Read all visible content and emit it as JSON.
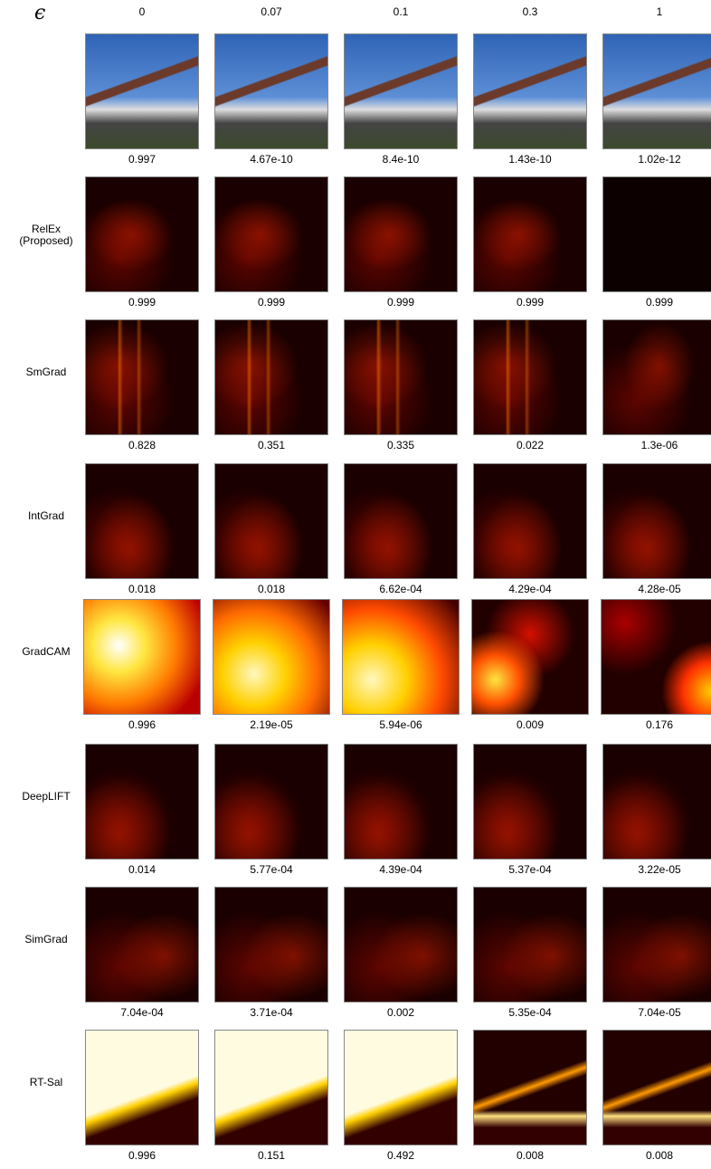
{
  "header": {
    "symbol": "ϵ",
    "columns": [
      "0",
      "0.07",
      "0.1",
      "0.3",
      "1"
    ]
  },
  "rows": [
    {
      "scores": [
        "0.997",
        "4.67e-10",
        "8.4e-10",
        "1.43e-10",
        "1.02e-12"
      ]
    },
    {
      "label": "RelEx\n(Proposed)",
      "scores": [
        "0.999",
        "0.999",
        "0.999",
        "0.999",
        "0.999"
      ]
    },
    {
      "label": "SmGrad",
      "scores": [
        "0.828",
        "0.351",
        "0.335",
        "0.022",
        "1.3e-06"
      ]
    },
    {
      "label": "IntGrad",
      "scores": [
        "0.018",
        "0.018",
        "6.62e-04",
        "4.29e-04",
        "4.28e-05"
      ]
    },
    {
      "label": "GradCAM",
      "scores": [
        "0.996",
        "2.19e-05",
        "5.94e-06",
        "0.009",
        "0.176"
      ]
    },
    {
      "label": "DeepLIFT",
      "scores": [
        "0.014",
        "5.77e-04",
        "4.39e-04",
        "5.37e-04",
        "3.22e-05"
      ]
    },
    {
      "label": "SimGrad",
      "scores": [
        "7.04e-04",
        "3.71e-04",
        "0.002",
        "5.35e-04",
        "7.04e-05"
      ]
    },
    {
      "label": "RT-Sal",
      "scores": [
        "0.996",
        "0.151",
        "0.492",
        "0.008",
        "0.008"
      ]
    }
  ]
}
